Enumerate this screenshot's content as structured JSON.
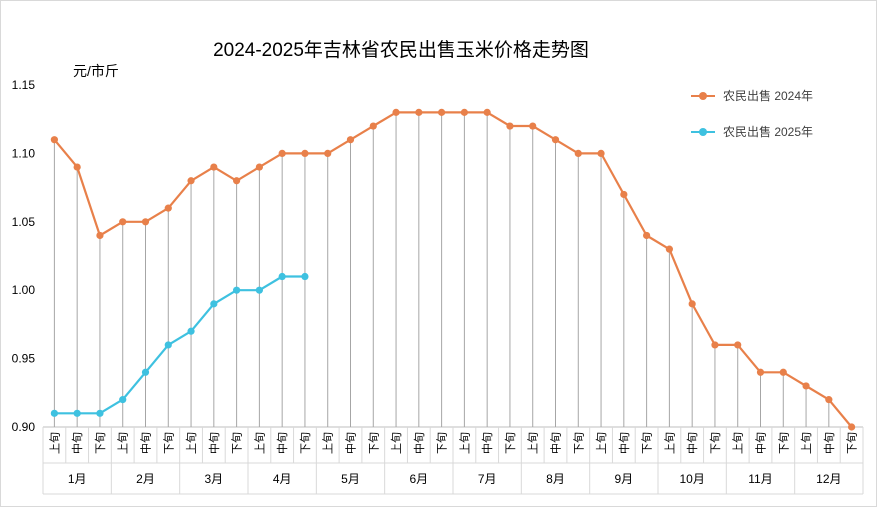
{
  "chart_data": {
    "type": "line",
    "title": "2024-2025年吉林省农民出售玉米价格走势图",
    "ylabel": "元/市斤",
    "ylim": [
      0.9,
      1.15
    ],
    "yticks": [
      "0.90",
      "0.95",
      "1.00",
      "1.05",
      "1.10",
      "1.15"
    ],
    "grid": false,
    "legend_position": "top-right",
    "periods": [
      "上旬",
      "中旬",
      "下旬"
    ],
    "months": [
      "1月",
      "2月",
      "3月",
      "4月",
      "5月",
      "6月",
      "7月",
      "8月",
      "9月",
      "10月",
      "11月",
      "12月"
    ],
    "series": [
      {
        "name": "农民出售 2024年",
        "color": "#E8804A",
        "values": [
          1.11,
          1.09,
          1.04,
          1.05,
          1.05,
          1.06,
          1.08,
          1.09,
          1.08,
          1.09,
          1.1,
          1.1,
          1.1,
          1.11,
          1.12,
          1.13,
          1.13,
          1.13,
          1.13,
          1.13,
          1.12,
          1.12,
          1.11,
          1.1,
          1.1,
          1.07,
          1.04,
          1.03,
          0.99,
          0.96,
          0.96,
          0.94,
          0.94,
          0.93,
          0.92,
          0.9
        ]
      },
      {
        "name": "农民出售 2025年",
        "color": "#3EC1E0",
        "values": [
          0.91,
          0.91,
          0.91,
          0.92,
          0.94,
          0.96,
          0.97,
          0.99,
          1.0,
          1.0,
          1.01,
          1.01
        ]
      }
    ]
  }
}
